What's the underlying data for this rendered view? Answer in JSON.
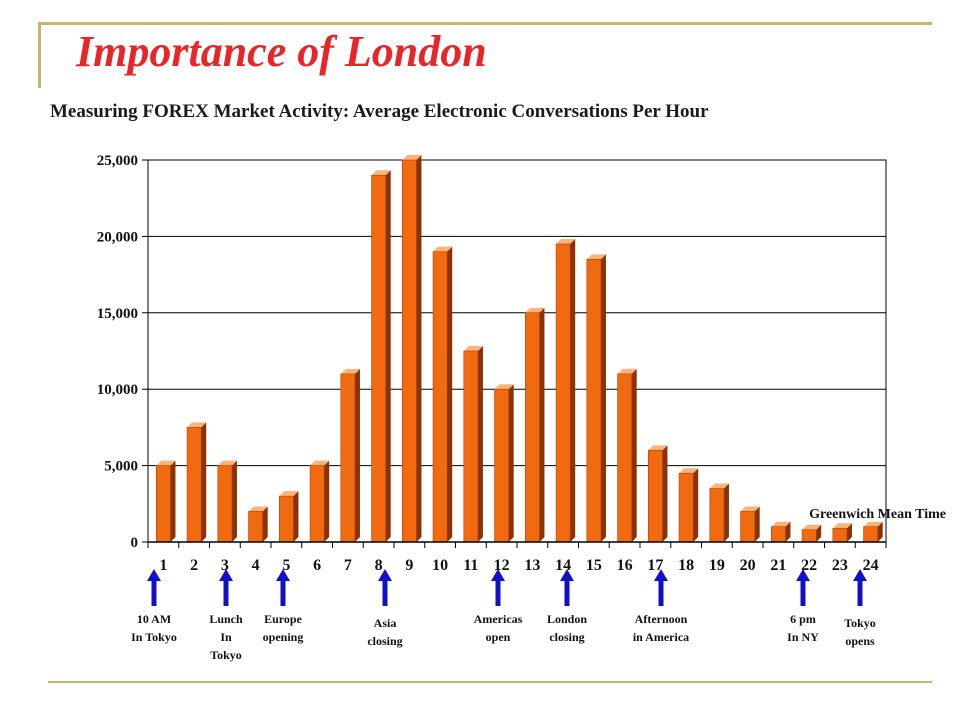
{
  "slide": {
    "title": "Importance of London"
  },
  "chart_data": {
    "type": "bar",
    "title": "Measuring FOREX Market Activity: Average Electronic Conversations Per Hour",
    "xlabel": "",
    "ylabel": "",
    "categories": [
      "1",
      "2",
      "3",
      "4",
      "5",
      "6",
      "7",
      "8",
      "9",
      "10",
      "11",
      "12",
      "13",
      "14",
      "15",
      "16",
      "17",
      "18",
      "19",
      "20",
      "21",
      "22",
      "23",
      "24"
    ],
    "values": [
      5000,
      7500,
      5000,
      2000,
      3000,
      5000,
      11000,
      24000,
      25000,
      19000,
      12500,
      10000,
      15000,
      19500,
      18500,
      11000,
      6000,
      4500,
      3500,
      2000,
      1000,
      800,
      900,
      1000
    ],
    "ylim": [
      0,
      25000
    ],
    "yticks": [
      0,
      5000,
      10000,
      15000,
      20000,
      25000
    ],
    "ytick_labels": [
      "0",
      "5,000",
      "10,000",
      "15,000",
      "20,000",
      "25,000"
    ],
    "grid": true,
    "bar_color": "#f26a10",
    "annotation_note": "Greenwich Mean Time",
    "annotations": [
      {
        "x": "1",
        "lines": [
          "10 AM",
          "In Tokyo"
        ]
      },
      {
        "x": "3",
        "lines": [
          "Lunch",
          "In",
          "Tokyo"
        ]
      },
      {
        "x": "5",
        "lines": [
          "Europe",
          "opening"
        ]
      },
      {
        "x": "8",
        "lines": [
          "Asia",
          "closing"
        ]
      },
      {
        "x": "12",
        "lines": [
          "Americas",
          "open"
        ]
      },
      {
        "x": "14",
        "lines": [
          "London",
          "closing"
        ]
      },
      {
        "x": "17",
        "lines": [
          "Afternoon",
          "in America"
        ]
      },
      {
        "x": "22",
        "lines": [
          "6 pm",
          "In NY"
        ]
      },
      {
        "x": "24",
        "lines": [
          "Tokyo",
          "opens"
        ]
      }
    ],
    "arrow_color": "#1010c8"
  }
}
